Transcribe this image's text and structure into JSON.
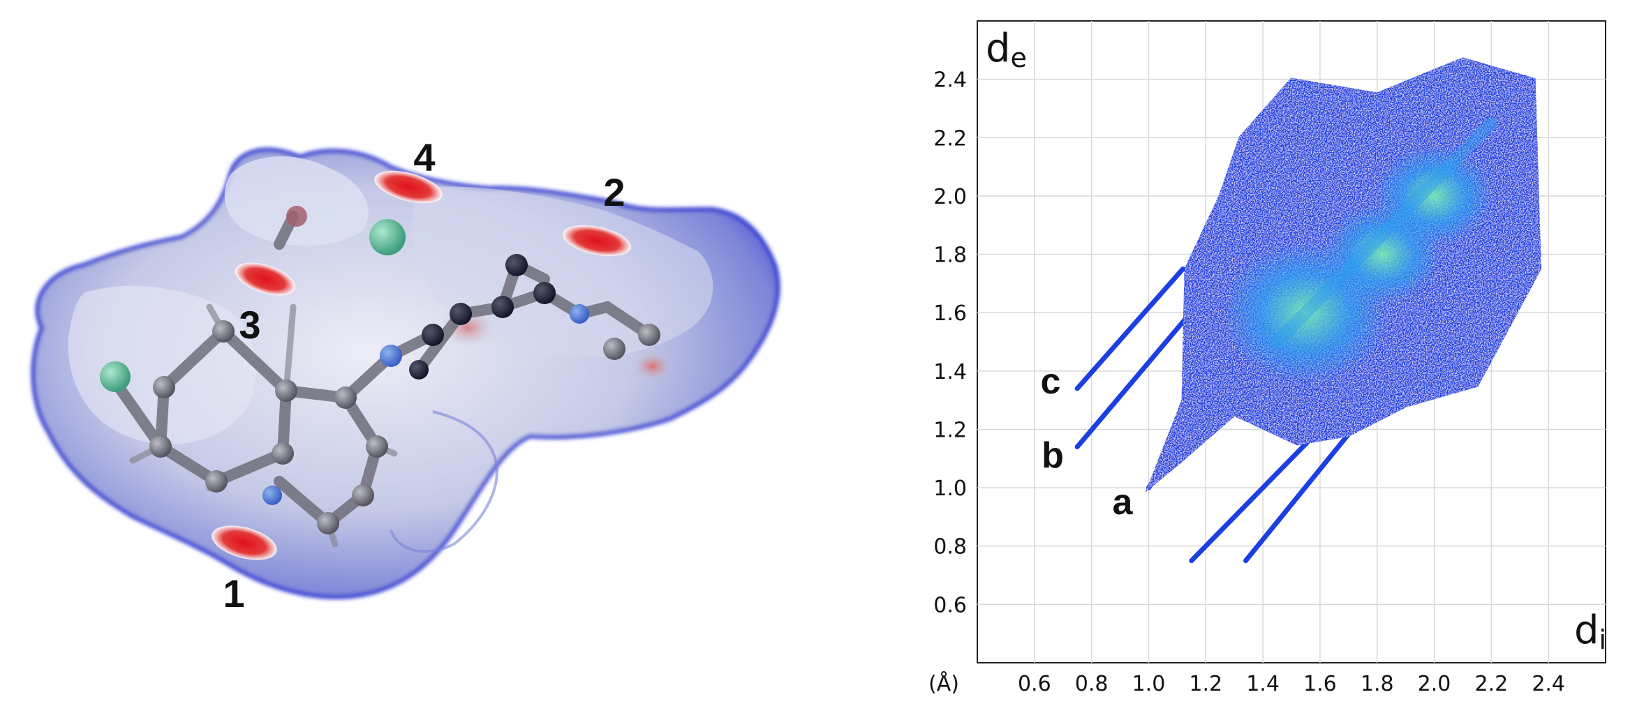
{
  "surface_figure": {
    "contact_labels": [
      "1",
      "2",
      "3",
      "4"
    ]
  },
  "fingerprint_plot": {
    "y_axis_label": "d",
    "y_axis_sub": "e",
    "x_axis_label": "d",
    "x_axis_sub": "i",
    "unit_label": "(Å)",
    "spike_labels": [
      "a",
      "b",
      "c"
    ]
  },
  "chart_data": {
    "type": "scatter",
    "title": "",
    "xlabel": "d_i",
    "ylabel": "d_e",
    "unit": "(Å)",
    "xlim": [
      0.4,
      2.6
    ],
    "ylim": [
      0.4,
      2.6
    ],
    "x_ticks": [
      "0.6",
      "0.8",
      "1.0",
      "1.2",
      "1.4",
      "1.6",
      "1.8",
      "2.0",
      "2.2",
      "2.4"
    ],
    "y_ticks": [
      "0.6",
      "0.8",
      "1.0",
      "1.2",
      "1.4",
      "1.6",
      "1.8",
      "2.0",
      "2.2",
      "2.4"
    ],
    "grid": true,
    "main_region_outline": [
      [
        1.13,
        1.75
      ],
      [
        1.25,
        2.0
      ],
      [
        1.32,
        2.2
      ],
      [
        1.5,
        2.4
      ],
      [
        1.8,
        2.35
      ],
      [
        2.1,
        2.47
      ],
      [
        2.35,
        2.4
      ],
      [
        2.37,
        1.75
      ],
      [
        2.15,
        1.35
      ],
      [
        1.9,
        1.28
      ],
      [
        1.7,
        1.18
      ],
      [
        1.52,
        1.15
      ],
      [
        1.3,
        1.25
      ],
      [
        1.1,
        1.08
      ],
      [
        1.0,
        1.0
      ],
      [
        1.12,
        1.3
      ]
    ],
    "hot_regions": [
      {
        "di": 1.55,
        "de": 1.6,
        "level": "high"
      },
      {
        "di": 1.82,
        "de": 1.8,
        "level": "medium"
      },
      {
        "di": 2.0,
        "de": 2.0,
        "level": "medium"
      }
    ],
    "spikes": [
      {
        "label": "a",
        "tip": [
          1.0,
          1.0
        ],
        "to": [
          1.15,
          1.22
        ]
      },
      {
        "label": "b",
        "tip": [
          0.75,
          1.14
        ],
        "to": [
          1.13,
          1.58
        ]
      },
      {
        "label": "c",
        "tip": [
          0.75,
          1.34
        ],
        "to": [
          1.12,
          1.75
        ]
      },
      {
        "label": "",
        "tip": [
          1.15,
          0.75
        ],
        "to": [
          1.58,
          1.18
        ]
      },
      {
        "label": "",
        "tip": [
          1.34,
          0.75
        ],
        "to": [
          1.78,
          1.28
        ]
      }
    ],
    "colors": {
      "low": "#1b3fe0",
      "mid": "#2aa0f0",
      "high": "#7af0b0"
    }
  }
}
